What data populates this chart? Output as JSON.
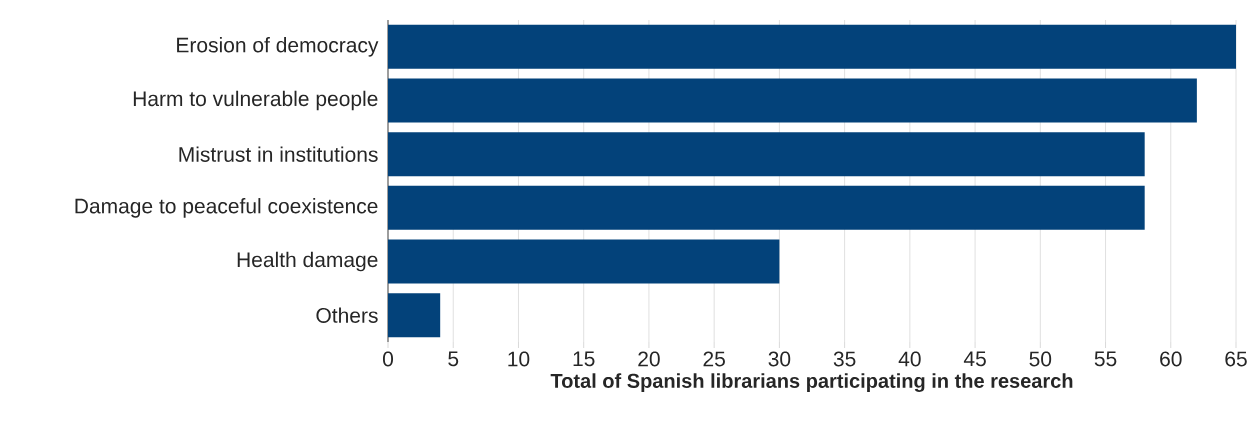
{
  "chart_data": {
    "type": "bar",
    "orientation": "horizontal",
    "xlabel": "Total of Spanish librarians participating in the research",
    "categories": [
      "Erosion of democracy",
      "Harm to vulnerable people",
      "Mistrust in institutions",
      "Damage to peaceful coexistence",
      "Health damage",
      "Others"
    ],
    "values": [
      65,
      62,
      58,
      58,
      30,
      4
    ],
    "color": "#03427a",
    "xlim": [
      0,
      65
    ],
    "xticks": [
      0,
      5,
      10,
      15,
      20,
      25,
      30,
      35,
      40,
      45,
      50,
      55,
      60,
      65
    ],
    "grid": "x"
  }
}
